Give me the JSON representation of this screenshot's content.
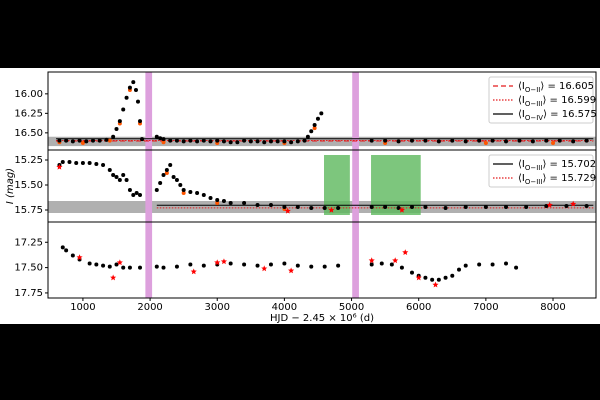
{
  "chart_data": [
    {
      "type": "scatter",
      "xlim": [
        480,
        8640
      ],
      "ylim": [
        15.72,
        16.72
      ],
      "invert_y": true,
      "yticks": [
        {
          "value": 16,
          "label": "16.00"
        },
        16.25,
        {
          "value": 16.5,
          "label": "16.50"
        }
      ],
      "vspans": [
        [
          1930,
          2030
        ],
        [
          5010,
          5110
        ]
      ],
      "vspan_color": "#dda0dd",
      "hspan": [
        16.55,
        16.67
      ],
      "hspan_color": "#b0b0b0",
      "series": [
        {
          "color": "#ff5500",
          "marker": "dot",
          "x": [
            650,
            1000,
            1400,
            1550,
            1700,
            1850,
            2200,
            3000,
            4000,
            4450,
            5500,
            7000,
            8000
          ],
          "values": [
            16.62,
            16.63,
            16.6,
            16.38,
            15.95,
            16.38,
            16.62,
            16.63,
            16.63,
            16.44,
            16.63,
            16.63,
            16.63
          ]
        },
        {
          "color": "#000000",
          "marker": "dot",
          "x": [
            650,
            750,
            850,
            950,
            1050,
            1150,
            1250,
            1350,
            1450,
            1500,
            1550,
            1600,
            1650,
            1700,
            1750,
            1790,
            1820,
            1850,
            1880,
            2100,
            2150,
            2200,
            2300,
            2400,
            2500,
            2600,
            2700,
            2800,
            2900,
            3000,
            3100,
            3200,
            3300,
            3400,
            3500,
            3600,
            3700,
            3800,
            3900,
            4000,
            4100,
            4200,
            4300,
            4350,
            4400,
            4450,
            4500,
            4550,
            5300,
            5500,
            5700,
            5900,
            6100,
            6300,
            6500,
            6700,
            6900,
            7100,
            7300,
            7500,
            7700,
            7900,
            8100,
            8300,
            8500
          ],
          "values": [
            16.6,
            16.6,
            16.61,
            16.6,
            16.61,
            16.6,
            16.6,
            16.59,
            16.55,
            16.45,
            16.35,
            16.2,
            16.05,
            15.92,
            15.85,
            15.95,
            16.1,
            16.35,
            16.58,
            16.55,
            16.57,
            16.58,
            16.6,
            16.6,
            16.61,
            16.6,
            16.61,
            16.6,
            16.61,
            16.6,
            16.61,
            16.62,
            16.62,
            16.6,
            16.61,
            16.61,
            16.62,
            16.61,
            16.61,
            16.61,
            16.62,
            16.61,
            16.6,
            16.55,
            16.48,
            16.4,
            16.32,
            16.25,
            16.6,
            16.6,
            16.61,
            16.6,
            16.6,
            16.61,
            16.6,
            16.61,
            16.6,
            16.6,
            16.61,
            16.6,
            16.61,
            16.6,
            16.6,
            16.61,
            16.6
          ]
        }
      ],
      "mean_lines": [
        {
          "name": "⟨I_{O−II}⟩ = 16.605",
          "color": "#e41a1c",
          "dash": "5,3",
          "x": [
            600,
            8600
          ],
          "value": 16.605
        },
        {
          "name": "⟨I_{O−III}⟩ = 16.599",
          "color": "#e41a1c",
          "dash": "1.5,1.5",
          "x": [
            600,
            8600
          ],
          "value": 16.599
        },
        {
          "name": "⟨I_{O−IV}⟩ = 16.575",
          "color": "#000000",
          "dash": "",
          "x": [
            600,
            8600
          ],
          "value": 16.575
        }
      ]
    },
    {
      "type": "scatter",
      "xlim": [
        480,
        8640
      ],
      "ylim": [
        15.15,
        15.87
      ],
      "invert_y": true,
      "yticks": [
        15.25,
        {
          "value": 15.5,
          "label": "15.50"
        },
        15.75
      ],
      "ylabel": "I (mag)",
      "vspans": [
        [
          1930,
          2030
        ],
        [
          5010,
          5110
        ]
      ],
      "vspan_color": "#dda0dd",
      "hspan": [
        15.66,
        15.78
      ],
      "hspan_color": "#b0b0b0",
      "rects": [
        [
          4590,
          4975,
          15.2,
          15.8
        ],
        [
          5290,
          6030,
          15.2,
          15.8
        ]
      ],
      "rect_color": "#5cb85c",
      "series": [
        {
          "color": "#ff5500",
          "marker": "dot",
          "x": [
            2250,
            2500,
            3000,
            4000
          ],
          "values": [
            15.38,
            15.58,
            15.68,
            15.74
          ]
        },
        {
          "color": "#000000",
          "marker": "dot",
          "x": [
            650,
            700,
            800,
            900,
            1000,
            1100,
            1200,
            1300,
            1400,
            1450,
            1500,
            1550,
            1600,
            1650,
            1700,
            1750,
            1800,
            1850,
            2100,
            2150,
            2200,
            2250,
            2300,
            2350,
            2400,
            2450,
            2500,
            2600,
            2700,
            2800,
            2900,
            3000,
            3100,
            3200,
            3400,
            3600,
            3800,
            4000,
            4200,
            4400,
            4600,
            4800,
            5300,
            5500,
            5700,
            5900,
            6100,
            6400,
            6700,
            7000,
            7300,
            7600,
            7900,
            8200,
            8500
          ],
          "values": [
            15.3,
            15.27,
            15.27,
            15.28,
            15.28,
            15.28,
            15.29,
            15.3,
            15.35,
            15.4,
            15.42,
            15.45,
            15.4,
            15.45,
            15.55,
            15.6,
            15.58,
            15.6,
            15.55,
            15.48,
            15.4,
            15.35,
            15.3,
            15.42,
            15.45,
            15.5,
            15.55,
            15.57,
            15.58,
            15.6,
            15.63,
            15.65,
            15.66,
            15.68,
            15.68,
            15.7,
            15.7,
            15.72,
            15.72,
            15.73,
            15.73,
            15.73,
            15.72,
            15.72,
            15.73,
            15.72,
            15.72,
            15.73,
            15.72,
            15.72,
            15.72,
            15.72,
            15.71,
            15.71,
            15.71
          ]
        },
        {
          "color": "#ff0000",
          "marker": "star",
          "x": [
            650,
            4050,
            4700,
            5750,
            7950,
            8300
          ],
          "values": [
            15.32,
            15.76,
            15.75,
            15.75,
            15.7,
            15.69
          ]
        }
      ],
      "mean_lines": [
        {
          "name": "⟨I_{O−III}⟩ = 15.702",
          "color": "#000000",
          "dash": "",
          "x": [
            2100,
            8600
          ],
          "value": 15.702
        },
        {
          "name": "⟨I_{O−III}⟩ = 15.729",
          "color": "#e41a1c",
          "dash": "1.5,1.5",
          "x": [
            2100,
            8600
          ],
          "value": 15.729
        }
      ]
    },
    {
      "type": "scatter",
      "xlim": [
        480,
        8640
      ],
      "ylim": [
        17.05,
        17.8
      ],
      "invert_y": true,
      "yticks": [
        17.25,
        {
          "value": 17.5,
          "label": "17.50"
        },
        17.75
      ],
      "xticks": [
        1000,
        2000,
        3000,
        4000,
        5000,
        6000,
        7000,
        8000
      ],
      "xlabel": "HJD − 2.45 × 10⁶ (d)",
      "vspans": [
        [
          1930,
          2030
        ],
        [
          5010,
          5110
        ]
      ],
      "vspan_color": "#dda0dd",
      "series": [
        {
          "color": "#000000",
          "marker": "dot",
          "x": [
            700,
            750,
            850,
            950,
            1100,
            1200,
            1300,
            1400,
            1500,
            1600,
            1700,
            1850,
            2100,
            2200,
            2400,
            2600,
            2800,
            3000,
            3200,
            3400,
            3600,
            3800,
            4000,
            4200,
            4400,
            4600,
            4800,
            5300,
            5450,
            5600,
            5750,
            5900,
            6000,
            6100,
            6200,
            6300,
            6400,
            6500,
            6600,
            6700,
            6900,
            7100,
            7300,
            7450
          ],
          "values": [
            17.3,
            17.33,
            17.38,
            17.42,
            17.46,
            17.47,
            17.48,
            17.49,
            17.47,
            17.5,
            17.5,
            17.5,
            17.49,
            17.5,
            17.49,
            17.47,
            17.48,
            17.47,
            17.46,
            17.47,
            17.48,
            17.47,
            17.46,
            17.48,
            17.49,
            17.49,
            17.48,
            17.47,
            17.46,
            17.47,
            17.5,
            17.55,
            17.58,
            17.6,
            17.62,
            17.62,
            17.6,
            17.58,
            17.52,
            17.48,
            17.47,
            17.47,
            17.46,
            17.5
          ]
        },
        {
          "color": "#ff0000",
          "marker": "star",
          "x": [
            950,
            1450,
            1550,
            2650,
            3000,
            3100,
            3700,
            4100,
            5300,
            5650,
            5800,
            6000,
            6250
          ],
          "values": [
            17.4,
            17.6,
            17.45,
            17.54,
            17.45,
            17.44,
            17.51,
            17.53,
            17.43,
            17.43,
            17.35,
            17.6,
            17.67
          ]
        }
      ]
    }
  ]
}
